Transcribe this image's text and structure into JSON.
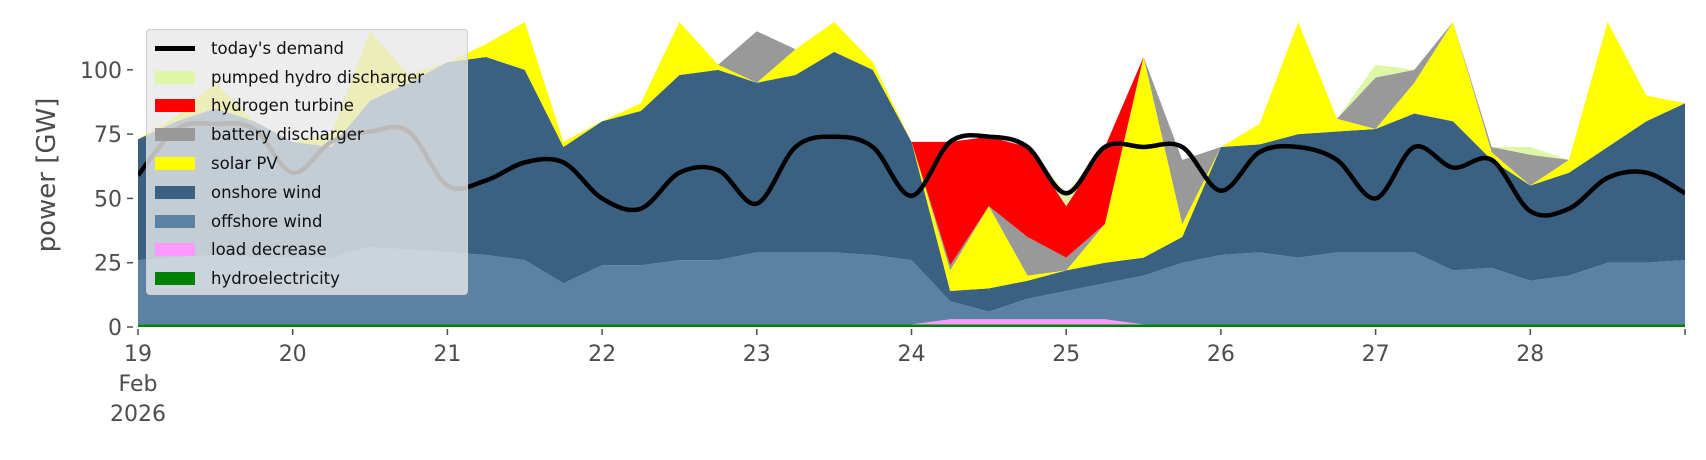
{
  "chart_data": {
    "type": "area",
    "title": "",
    "xlabel": "",
    "ylabel": "power [GW]",
    "ylim": [
      0,
      118.6
    ],
    "xlim": [
      19,
      29
    ],
    "x_start_day": 19,
    "x_step_days": 0.25,
    "x_ticks": [
      {
        "value": 19,
        "label": "19",
        "sub": [
          "Feb",
          "2026"
        ]
      },
      {
        "value": 20,
        "label": "20"
      },
      {
        "value": 21,
        "label": "21"
      },
      {
        "value": 22,
        "label": "22"
      },
      {
        "value": 23,
        "label": "23"
      },
      {
        "value": 24,
        "label": "24"
      },
      {
        "value": 25,
        "label": "25"
      },
      {
        "value": 26,
        "label": "26"
      },
      {
        "value": 27,
        "label": "27"
      },
      {
        "value": 28,
        "label": "28"
      },
      {
        "value": 29,
        "label": ""
      }
    ],
    "y_ticks": [
      0,
      25,
      50,
      75,
      100
    ],
    "stacked_series": [
      {
        "name": "hydroelectricity",
        "color": "#008000",
        "values": [
          1,
          1,
          1,
          1,
          1,
          1,
          1,
          1,
          1,
          1,
          1,
          1,
          1,
          1,
          1,
          1,
          1,
          1,
          1,
          1,
          1,
          1,
          1,
          1,
          1,
          1,
          1,
          1,
          1,
          1,
          1,
          1,
          1,
          1,
          1,
          1,
          1,
          1,
          1,
          1,
          1
        ]
      },
      {
        "name": "load decrease",
        "color": "#ff99ff",
        "values": [
          0,
          0,
          0,
          0,
          0,
          0,
          0,
          0,
          0,
          0,
          0,
          0,
          0,
          0,
          0,
          0,
          0,
          0,
          0,
          0,
          0,
          2,
          2,
          2,
          2,
          2,
          0,
          0,
          0,
          0,
          0,
          0,
          0,
          0,
          0,
          0,
          0,
          0,
          0,
          0,
          0
        ]
      },
      {
        "name": "offshore wind",
        "color": "#5b82a3",
        "values": [
          25,
          26,
          27,
          26,
          26,
          26,
          30,
          29,
          28,
          27,
          25,
          16,
          23,
          23,
          25,
          25,
          28,
          28,
          28,
          27,
          25,
          7,
          3,
          8,
          11,
          14,
          19,
          24,
          27,
          28,
          26,
          28,
          28,
          28,
          21,
          22,
          17,
          19,
          24,
          24,
          25
        ]
      },
      {
        "name": "onshore wind",
        "color": "#3b6182",
        "values": [
          47,
          53,
          57,
          53,
          45,
          43,
          57,
          65,
          74,
          77,
          74,
          53,
          56,
          60,
          72,
          74,
          66,
          69,
          78,
          72,
          46,
          4,
          9,
          7,
          8,
          8,
          7,
          10,
          42,
          42,
          48,
          47,
          48,
          54,
          58,
          42,
          37,
          40,
          45,
          55,
          61
        ]
      },
      {
        "name": "solar PV",
        "color": "#ffff00",
        "values": [
          0,
          2,
          10,
          0,
          0,
          5,
          27,
          3,
          0,
          5,
          40,
          2,
          0,
          3,
          28,
          2,
          0,
          10,
          35,
          3,
          0,
          8,
          32,
          2,
          0,
          15,
          78,
          5,
          0,
          8,
          60,
          5,
          0,
          12,
          55,
          3,
          0,
          5,
          60,
          10,
          0
        ]
      },
      {
        "name": "battery discharger",
        "color": "#999999",
        "values": [
          0,
          0,
          0,
          0,
          0,
          0,
          0,
          0,
          0,
          0,
          0,
          0,
          0,
          0,
          0,
          0,
          20,
          0,
          0,
          0,
          0,
          2,
          0,
          15,
          5,
          0,
          0,
          25,
          0,
          0,
          0,
          0,
          20,
          5,
          0,
          2,
          12,
          0,
          0,
          0,
          0
        ]
      },
      {
        "name": "hydrogen turbine",
        "color": "#ff0000",
        "values": [
          0,
          0,
          0,
          0,
          0,
          0,
          0,
          0,
          0,
          0,
          0,
          0,
          0,
          0,
          0,
          0,
          0,
          0,
          0,
          0,
          0,
          48,
          27,
          35,
          20,
          30,
          0,
          0,
          0,
          0,
          0,
          0,
          0,
          0,
          0,
          0,
          0,
          0,
          0,
          0,
          0
        ]
      },
      {
        "name": "pumped hydro discharger",
        "color": "#ddf7a6",
        "values": [
          0,
          0,
          0,
          0,
          0,
          0,
          0,
          0,
          0,
          0,
          0,
          0,
          0,
          0,
          0,
          0,
          0,
          0,
          0,
          0,
          0,
          0,
          0,
          0,
          5,
          0,
          0,
          0,
          0,
          0,
          0,
          0,
          5,
          0,
          0,
          0,
          3,
          0,
          0,
          0,
          0
        ]
      }
    ],
    "demand": {
      "name": "today's demand",
      "color": "#000000",
      "values": [
        59,
        77,
        79,
        77,
        60,
        72,
        76,
        76,
        55,
        57,
        64,
        64,
        50,
        46,
        60,
        61,
        48,
        70,
        74,
        70,
        51,
        72,
        74,
        70,
        52,
        70,
        70,
        70,
        53,
        68,
        70,
        65,
        50,
        70,
        62,
        65,
        45,
        46,
        58,
        60,
        52
      ]
    },
    "legend": {
      "placement": "top-left",
      "entries": [
        "today's demand",
        "pumped hydro discharger",
        "hydrogen turbine",
        "battery discharger",
        "solar PV",
        "onshore wind",
        "offshore wind",
        "load decrease",
        "hydroelectricity"
      ],
      "colors": [
        "#000000",
        "#ddf7a6",
        "#ff0000",
        "#999999",
        "#ffff00",
        "#3b6182",
        "#5b82a3",
        "#ff99ff",
        "#008000"
      ]
    }
  }
}
